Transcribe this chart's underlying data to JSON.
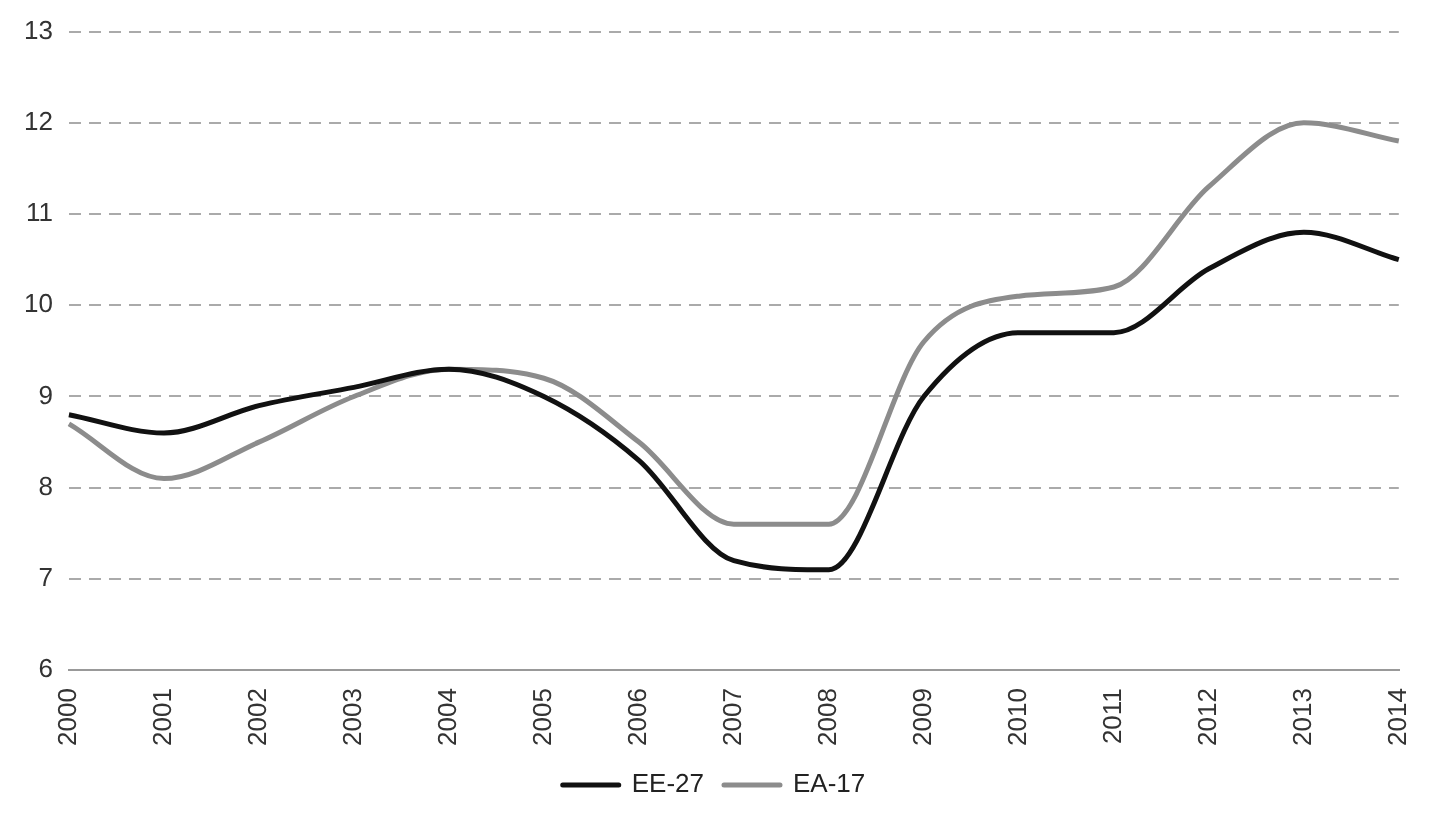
{
  "chart_data": {
    "type": "line",
    "categories": [
      "2000",
      "2001",
      "2002",
      "2003",
      "2004",
      "2005",
      "2006",
      "2007",
      "2008",
      "2009",
      "2010",
      "2011",
      "2012",
      "2013",
      "2014"
    ],
    "series": [
      {
        "name": "EE-27",
        "color": "#111111",
        "values": [
          8.8,
          8.6,
          8.9,
          9.1,
          9.3,
          9.0,
          8.3,
          7.2,
          7.1,
          9.0,
          9.7,
          9.7,
          10.4,
          10.8,
          10.5
        ]
      },
      {
        "name": "EA-17",
        "color": "#8c8c8c",
        "values": [
          8.7,
          8.1,
          8.5,
          9.0,
          9.3,
          9.2,
          8.5,
          7.6,
          7.6,
          9.6,
          10.1,
          10.2,
          11.3,
          12.0,
          11.8
        ]
      }
    ],
    "ylim": [
      6,
      13
    ],
    "yticks": [
      6,
      7,
      8,
      9,
      10,
      11,
      12,
      13
    ],
    "grid": "y",
    "legend": "bottom",
    "marker": "none",
    "line_style": "solid"
  }
}
